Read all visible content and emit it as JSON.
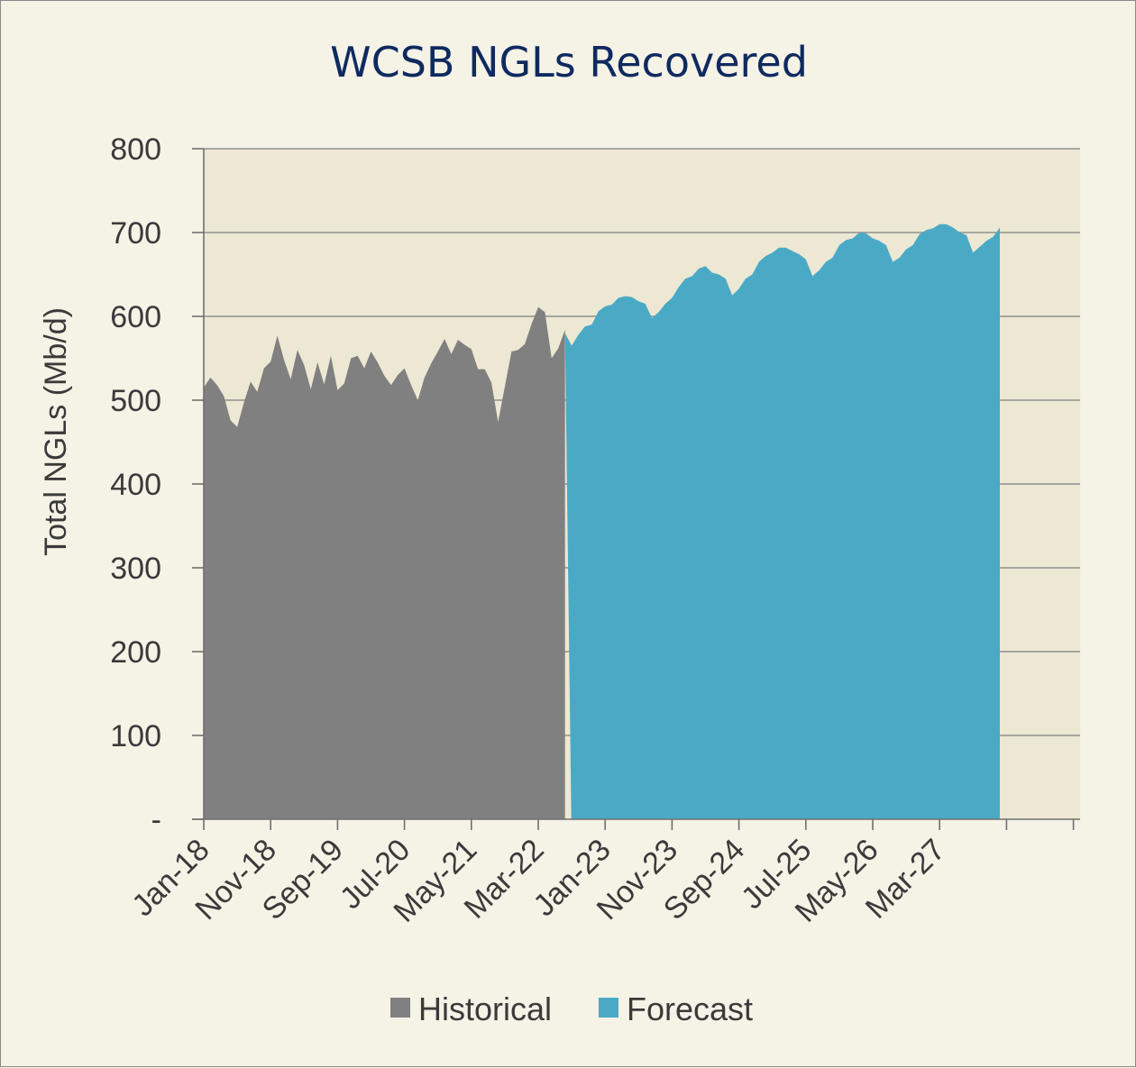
{
  "chart_data": {
    "type": "area",
    "title": "WCSB NGLs Recovered",
    "ylabel": "Total NGLs (Mb/d)",
    "xlabel": "",
    "ylim": [
      0,
      800
    ],
    "yticks": [
      0,
      100,
      200,
      300,
      400,
      500,
      600,
      700,
      800
    ],
    "ytick_labels": [
      "-",
      "100",
      "200",
      "300",
      "400",
      "500",
      "600",
      "700",
      "800"
    ],
    "x_start": "2018-01",
    "x_end": "2028-12",
    "xtick_labels": [
      "Jan-18",
      "Nov-18",
      "Sep-19",
      "Jul-20",
      "May-21",
      "Mar-22",
      "Jan-23",
      "Nov-23",
      "Sep-24",
      "Jul-25",
      "May-26",
      "Mar-27"
    ],
    "grid": "horizontal",
    "legend_position": "bottom",
    "colors": {
      "historical": "#808080",
      "forecast": "#4aaac6",
      "plot_background": "#ede8d3"
    },
    "series": [
      {
        "name": "Historical",
        "x_start": "2018-01",
        "values": [
          515,
          527,
          518,
          505,
          476,
          468,
          497,
          522,
          510,
          538,
          546,
          577,
          548,
          525,
          560,
          542,
          513,
          545,
          519,
          553,
          512,
          520,
          550,
          553,
          538,
          558,
          545,
          529,
          518,
          530,
          538,
          518,
          500,
          527,
          544,
          558,
          573,
          555,
          572,
          566,
          561,
          537,
          537,
          521,
          474,
          516,
          558,
          560,
          567,
          591,
          611,
          605,
          550,
          562,
          584
        ]
      },
      {
        "name": "Forecast",
        "x_start": "2022-07",
        "values": [
          580,
          565,
          578,
          588,
          590,
          606,
          612,
          614,
          622,
          624,
          623,
          618,
          615,
          598,
          605,
          615,
          622,
          635,
          645,
          648,
          657,
          660,
          652,
          650,
          645,
          625,
          633,
          645,
          650,
          665,
          672,
          676,
          682,
          682,
          678,
          674,
          668,
          648,
          655,
          665,
          670,
          685,
          691,
          693,
          700,
          699,
          693,
          690,
          685,
          665,
          670,
          680,
          685,
          698,
          703,
          705,
          710,
          710,
          706,
          700,
          697,
          676,
          683,
          690,
          695,
          706
        ]
      }
    ]
  }
}
